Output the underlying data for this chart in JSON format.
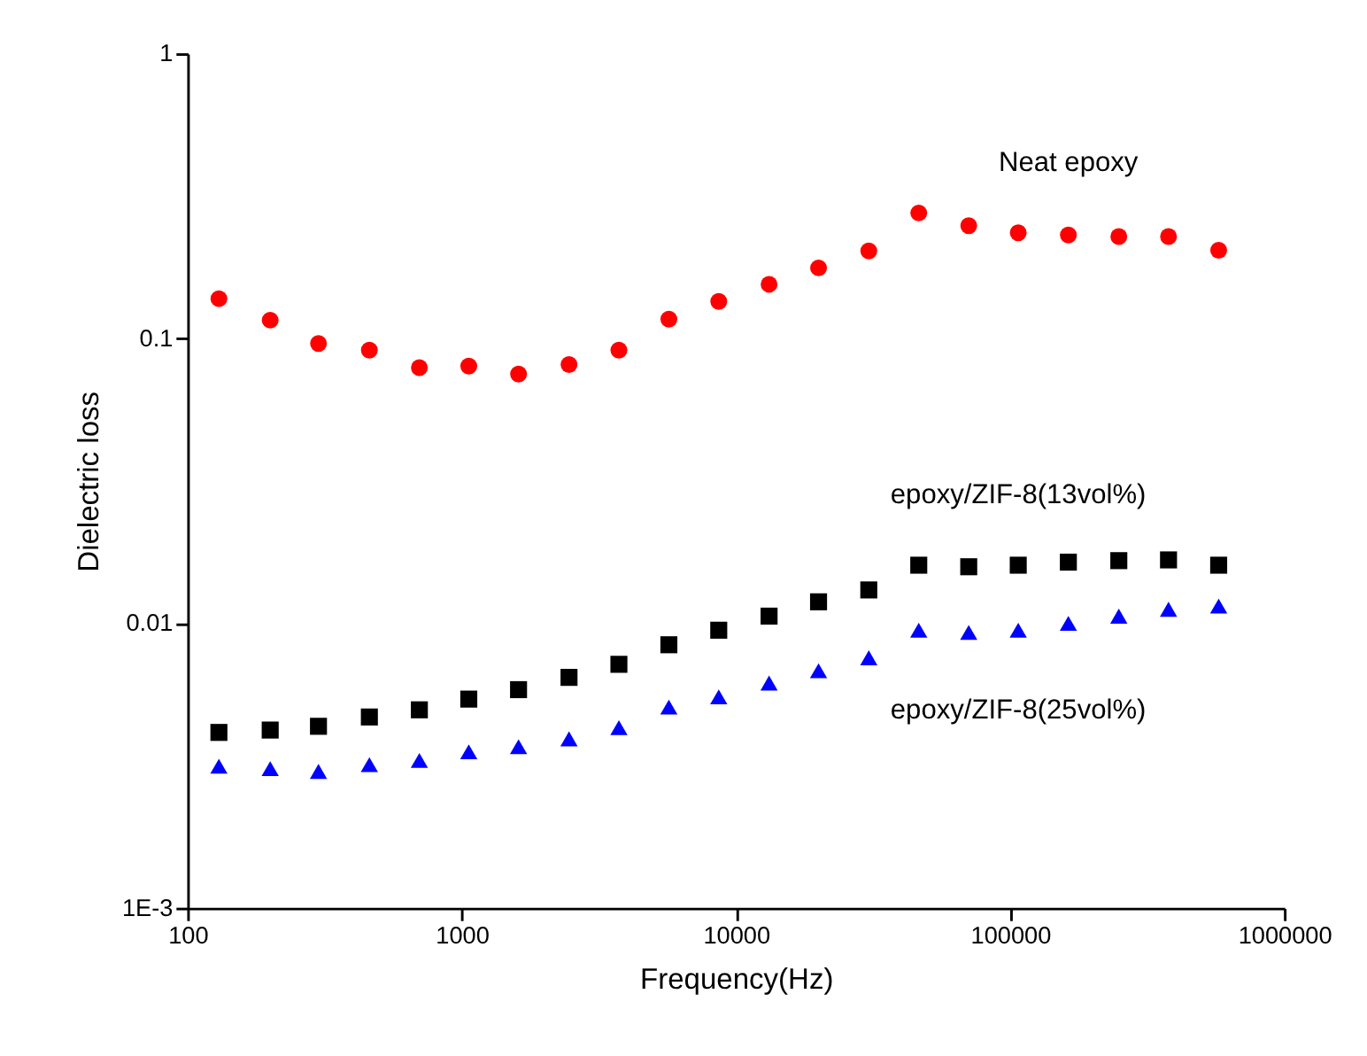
{
  "chart_data": {
    "type": "scatter",
    "xlabel": "Frequency(Hz)",
    "ylabel": "Dielectric loss",
    "log": "xy",
    "grid": false,
    "legend": false,
    "x": [
      130,
      200,
      300,
      460,
      700,
      1060,
      1610,
      2460,
      3740,
      5690,
      8650,
      13200,
      20000,
      30500,
      46400,
      70600,
      107000,
      163000,
      249000,
      378000,
      576000
    ],
    "xlim": [
      100,
      1000000
    ],
    "xticks": [
      100,
      1000,
      10000,
      100000,
      1000000
    ],
    "ylim": [
      0.001,
      1
    ],
    "yticks": [
      {
        "value": 0.001,
        "label": "1E-3"
      },
      0.01,
      0.1,
      1
    ],
    "series": [
      {
        "name": "Neat epoxy",
        "color": "#ff0000",
        "marker": "circle",
        "values": [
          0.138,
          0.116,
          0.096,
          0.091,
          0.079,
          0.08,
          0.075,
          0.081,
          0.091,
          0.117,
          0.135,
          0.155,
          0.177,
          0.203,
          0.276,
          0.249,
          0.235,
          0.231,
          0.228,
          0.228,
          0.204
        ]
      },
      {
        "name": "epoxy/ZIF-8(13vol%)",
        "color": "#000000",
        "marker": "square",
        "values": [
          0.00414,
          0.00422,
          0.00435,
          0.00469,
          0.00497,
          0.00542,
          0.00585,
          0.00646,
          0.00718,
          0.00841,
          0.00946,
          0.0106,
          0.0119,
          0.0131,
          0.016,
          0.0158,
          0.016,
          0.0164,
          0.0166,
          0.0167,
          0.016
        ]
      },
      {
        "name": "epoxy/ZIF-8(25vol%)",
        "color": "#0000ff",
        "marker": "triangle",
        "values": [
          0.00315,
          0.00309,
          0.00302,
          0.00319,
          0.0033,
          0.00354,
          0.00369,
          0.00393,
          0.0043,
          0.00508,
          0.00552,
          0.00617,
          0.00682,
          0.00757,
          0.00946,
          0.00929,
          0.00946,
          0.01,
          0.0106,
          0.0112,
          0.0115
        ]
      }
    ]
  }
}
